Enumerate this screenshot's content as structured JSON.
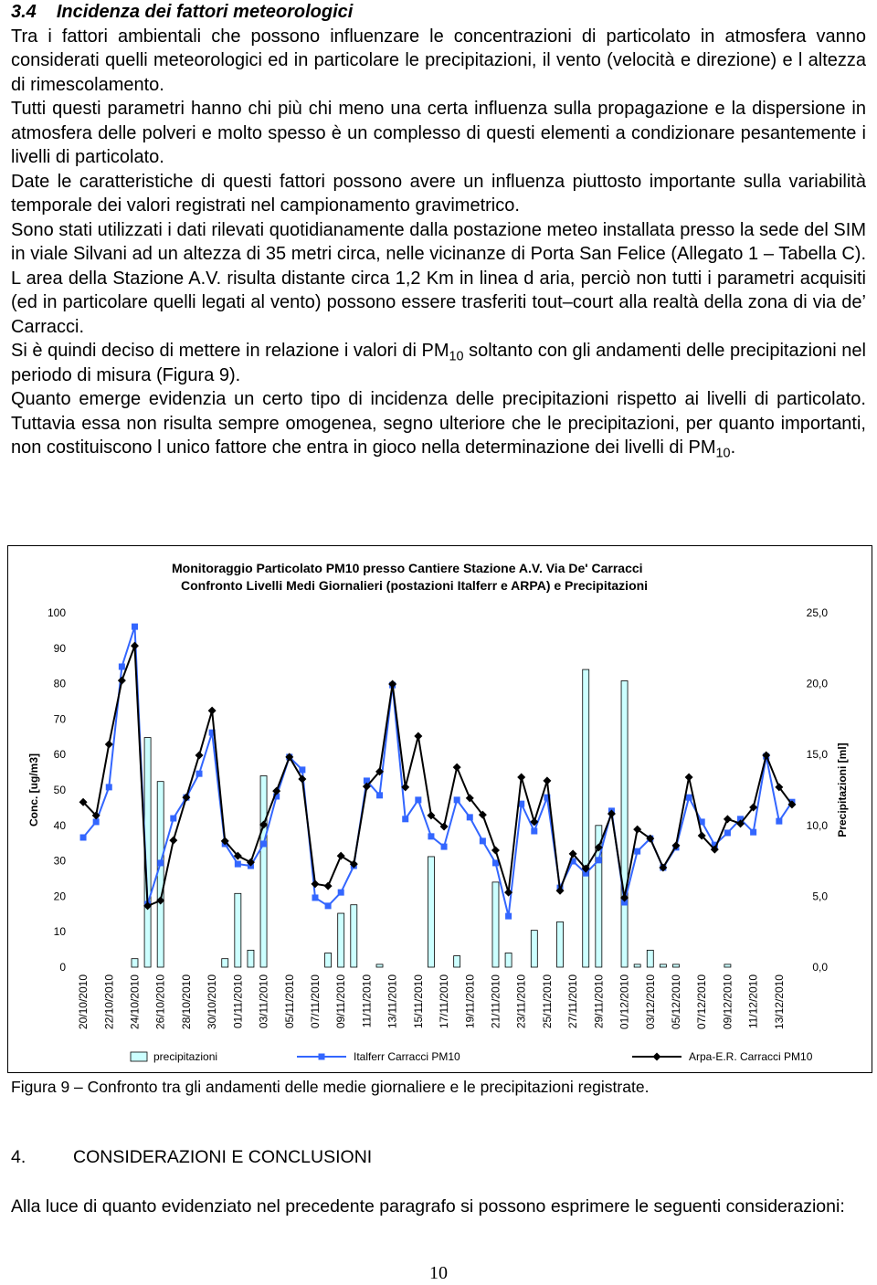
{
  "header": {
    "number": "3.4",
    "title": "Incidenza dei fattori meteorologici"
  },
  "paragraphs": [
    [
      {
        "text": "Tra i fattori ambientali che possono influenzare le concentrazioni di particolato in atmosfera vanno considerati quelli meteorologici ed in particolare le precipitazioni, il vento (velocità e direzione) e l altezza di rimescolamento."
      }
    ],
    [
      {
        "text": "Tutti questi parametri hanno chi più chi meno una certa influenza sulla propagazione e la dispersione in atmosfera delle polveri e molto spesso è un complesso di questi elementi a condizionare pesantemente i livelli di particolato."
      }
    ],
    [
      {
        "text": "Date le caratteristiche di questi fattori possono avere un influenza piuttosto importante sulla variabilità temporale dei valori registrati nel campionamento gravimetrico."
      }
    ],
    [
      {
        "text": "Sono stati utilizzati i dati rilevati quotidianamente dalla postazione meteo installata presso la sede del SIM in viale Silvani ad un altezza di 35 metri circa, nelle vicinanze di Porta San Felice (Allegato 1 – Tabella C). L area della Stazione A.V. risulta distante circa 1,2 Km in linea d aria, perciò non tutti i parametri acquisiti (ed in particolare quelli legati al vento) possono essere trasferiti tout–court alla realtà della zona di via de’ Carracci."
      }
    ],
    [
      {
        "text": "Si è quindi deciso di mettere in relazione i valori di PM"
      },
      {
        "text": "10",
        "sub": true
      },
      {
        "text": " soltanto con gli andamenti delle precipitazioni nel periodo di misura (Figura 9)."
      }
    ],
    [
      {
        "text": "Quanto emerge evidenzia un certo tipo di incidenza delle precipitazioni rispetto ai livelli di particolato. Tuttavia essa non risulta sempre omogenea, segno ulteriore che le precipitazioni, per quanto importanti, non costituiscono l unico fattore che entra in gioco nella determinazione dei livelli di PM"
      },
      {
        "text": "10",
        "sub": true
      },
      {
        "text": "."
      }
    ]
  ],
  "chart_data": {
    "type": "combo",
    "title": "Monitoraggio Particolato PM10 presso Cantiere Stazione A.V. Via De' Carracci",
    "subtitle": "Confronto Livelli Medi Giornalieri (postazioni Italferr e ARPA) e Precipitazioni",
    "y_label": "Conc. [ug/m3]",
    "y2_label": "Precipitazioni [ml]",
    "categories": [
      "20/10/2010",
      null,
      "22/10/2010",
      null,
      "24/10/2010",
      null,
      "26/10/2010",
      null,
      "28/10/2010",
      null,
      "30/10/2010",
      null,
      "01/11/2010",
      null,
      "03/11/2010",
      null,
      "05/11/2010",
      null,
      "07/11/2010",
      null,
      "09/11/2010",
      null,
      "11/11/2010",
      null,
      "13/11/2010",
      null,
      "15/11/2010",
      null,
      "17/11/2010",
      null,
      "19/11/2010",
      null,
      "21/11/2010",
      null,
      "23/11/2010",
      null,
      "25/11/2010",
      null,
      "27/11/2010",
      null,
      "29/11/2010",
      null,
      "01/12/2010",
      null,
      "03/12/2010",
      null,
      "05/12/2010",
      null,
      "07/12/2010",
      null,
      "09/12/2010",
      null,
      "11/12/2010",
      null,
      "13/12/2010",
      null
    ],
    "ylim": [
      0,
      100
    ],
    "yticks": [
      0,
      10,
      20,
      30,
      40,
      50,
      60,
      70,
      80,
      90,
      100
    ],
    "y2lim": [
      0,
      25
    ],
    "y2ticks": [
      {
        "value": 0,
        "label": "0,0"
      },
      {
        "value": 5,
        "label": "5,0"
      },
      {
        "value": 10,
        "label": "10,0"
      },
      {
        "value": 15,
        "label": "15,0"
      },
      {
        "value": 20,
        "label": "20,0"
      },
      {
        "value": 25,
        "label": "25,0"
      }
    ],
    "grid": false,
    "series": [
      {
        "name": "precipitazioni",
        "type": "bar",
        "axis": "y2",
        "color": "#ccffff",
        "values": [
          0,
          0,
          0,
          0,
          0.6,
          16.2,
          13.1,
          0,
          0,
          0,
          0,
          0.6,
          5.2,
          1.2,
          13.5,
          0,
          0,
          0,
          0,
          1,
          3.8,
          4.4,
          0,
          0.2,
          0,
          0,
          0,
          7.8,
          0,
          0.8,
          0,
          0,
          6,
          1,
          0,
          2.6,
          0,
          3.2,
          0,
          21,
          10,
          0,
          20.2,
          0.2,
          1.2,
          0.2,
          0.2,
          0,
          0,
          0,
          0.2,
          0,
          0,
          0,
          0,
          0
        ]
      },
      {
        "name": "Italferr Carracci PM10",
        "type": "line",
        "marker": "square",
        "color": "#3366ff",
        "values": [
          36.6,
          41,
          50.8,
          84.8,
          96.1,
          17.8,
          29.4,
          42,
          47.9,
          54.6,
          66.2,
          34.8,
          29.1,
          28.6,
          34.8,
          48.2,
          59.3,
          55.7,
          19.6,
          17.3,
          21.1,
          28.6,
          52.6,
          48.5,
          79.6,
          41.8,
          47.2,
          36.9,
          34,
          47.2,
          42.3,
          35.6,
          29.4,
          14.4,
          46.1,
          38.4,
          47.9,
          22.4,
          29.9,
          26.5,
          30.2,
          44.1,
          18.3,
          32.7,
          36.3,
          28.1,
          33.8,
          47.9,
          41,
          34.5,
          37.9,
          41.8,
          38.1,
          59.5,
          41.2,
          46.6
        ]
      },
      {
        "name": "Arpa-E.R. Carracci PM10",
        "type": "line",
        "marker": "diamond",
        "color": "#000000",
        "values": [
          46.6,
          42.8,
          62.9,
          80.9,
          90.7,
          17.3,
          18.8,
          35.8,
          47.9,
          59.8,
          72.4,
          35.6,
          31.4,
          29.6,
          40.2,
          49.7,
          59.3,
          53.1,
          23.5,
          22.9,
          31.4,
          29.1,
          51,
          55.2,
          79.9,
          50.8,
          65.2,
          42.8,
          39.7,
          56.4,
          47.7,
          43,
          33,
          21.1,
          53.6,
          41,
          52.6,
          21.6,
          32,
          27.8,
          33.8,
          43.3,
          19.6,
          38.9,
          36.3,
          28.1,
          34.3,
          53.6,
          37.1,
          33.2,
          41.8,
          40.5,
          45.1,
          59.8,
          50.8,
          45.9
        ]
      }
    ]
  },
  "caption": "Figura 9 – Confronto tra gli andamenti delle medie giornaliere e le precipitazioni registrate.",
  "section": {
    "number": "4.",
    "title": "CONSIDERAZIONI E CONCLUSIONI"
  },
  "closing_paragraph": "Alla luce di quanto evidenziato nel precedente paragrafo si possono esprimere le seguenti considerazioni:",
  "page_number": "10"
}
